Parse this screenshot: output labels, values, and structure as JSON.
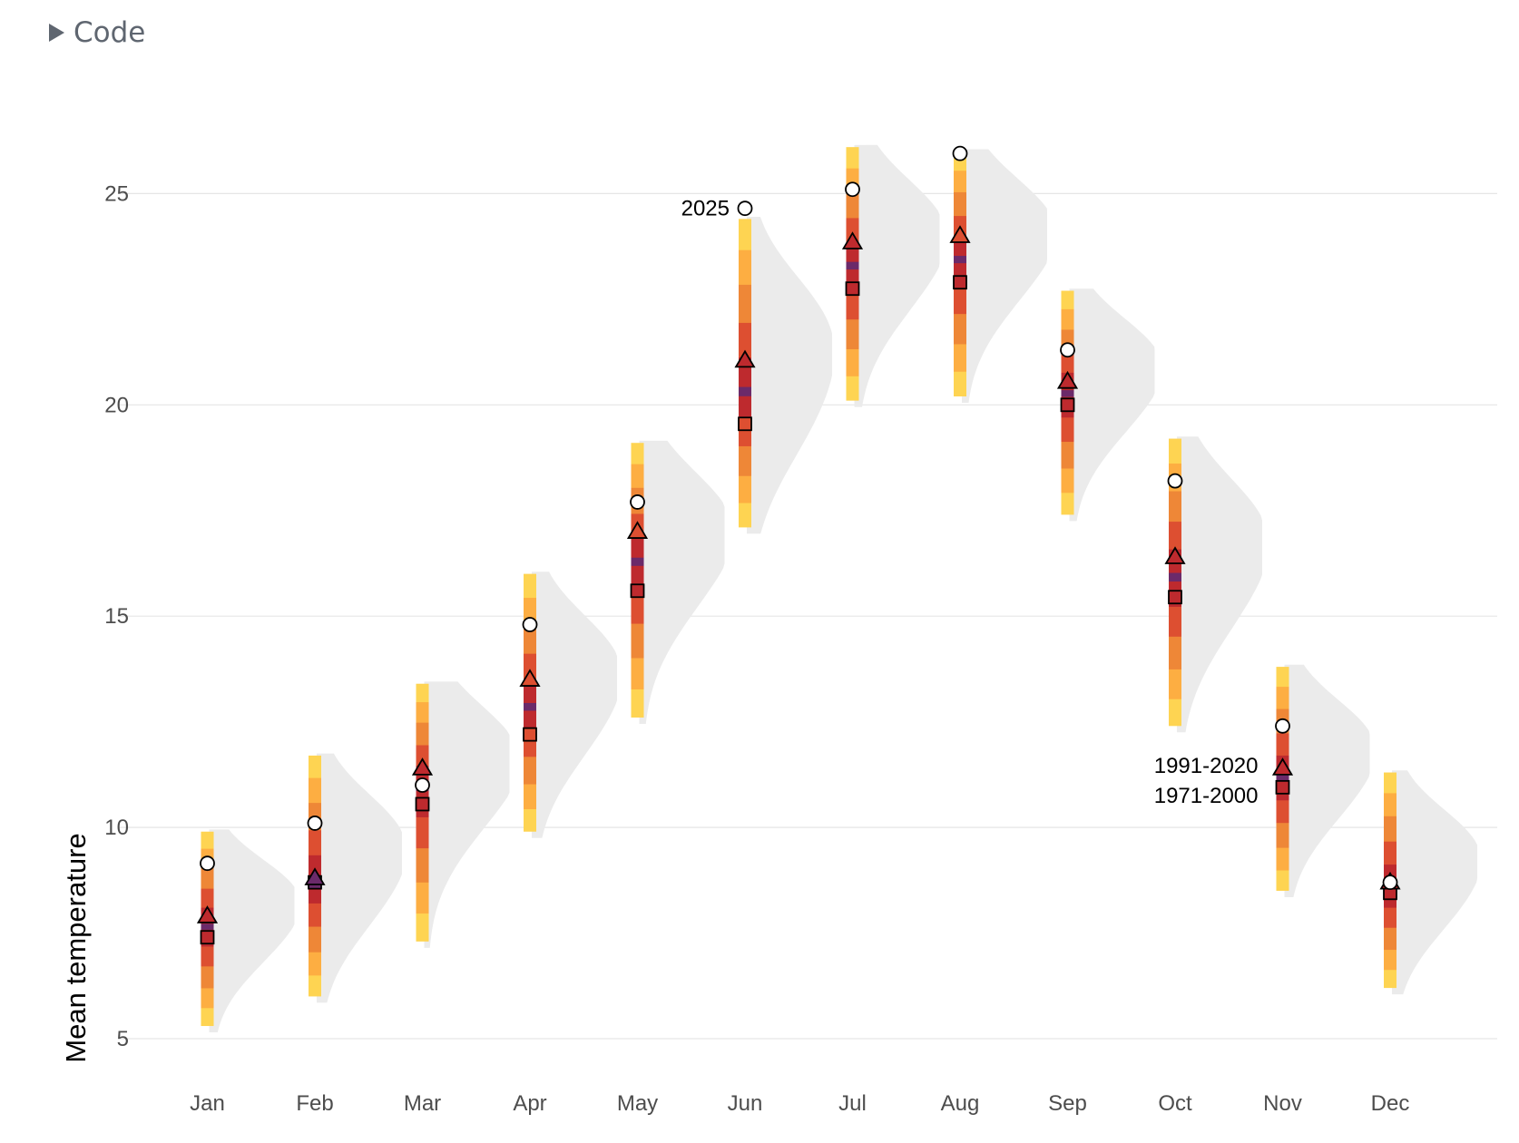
{
  "header": {
    "code_toggle_label": "Code"
  },
  "chart_data": {
    "type": "range-bar-with-density",
    "title": "",
    "xlabel": "",
    "ylabel": "Mean temperature",
    "ylim": [
      5,
      27
    ],
    "yticks": [
      5,
      10,
      15,
      20,
      25
    ],
    "grid": true,
    "categories": [
      "Jan",
      "Feb",
      "Mar",
      "Apr",
      "May",
      "Jun",
      "Jul",
      "Aug",
      "Sep",
      "Oct",
      "Nov",
      "Dec"
    ],
    "range_min": [
      5.3,
      6.0,
      7.3,
      9.9,
      12.6,
      17.1,
      20.1,
      20.2,
      17.4,
      12.4,
      8.5,
      6.2
    ],
    "range_max": [
      9.9,
      11.7,
      13.4,
      16.0,
      19.1,
      24.4,
      26.1,
      26.0,
      22.7,
      19.2,
      13.8,
      11.3
    ],
    "series": [
      {
        "name": "2025",
        "marker": "circle",
        "values": [
          9.15,
          10.1,
          11.0,
          14.8,
          17.7,
          24.65,
          25.1,
          25.95,
          21.3,
          18.2,
          12.4,
          8.7
        ]
      },
      {
        "name": "1991-2020",
        "marker": "triangle",
        "values": [
          7.9,
          8.8,
          11.4,
          13.5,
          17.0,
          21.05,
          23.85,
          24.0,
          20.55,
          16.4,
          11.4,
          8.7
        ]
      },
      {
        "name": "1971-2000",
        "marker": "square",
        "values": [
          7.4,
          8.7,
          10.55,
          12.2,
          15.6,
          19.55,
          22.75,
          22.9,
          20.0,
          15.45,
          10.95,
          8.45
        ]
      }
    ],
    "annotations": [
      {
        "text": "2025",
        "month": "Jun",
        "series": "2025"
      },
      {
        "text": "1991-2020",
        "month": "Nov",
        "series": "1991-2020"
      },
      {
        "text": "1971-2000",
        "month": "Nov",
        "series": "1971-2000"
      }
    ],
    "band_colors": [
      "#FED452",
      "#FDAE42",
      "#EE8737",
      "#DD4F31",
      "#BE2A2E",
      "#6B2A6A"
    ],
    "density_color": "#EBEBEB",
    "grid_color": "#E6E6E6"
  }
}
